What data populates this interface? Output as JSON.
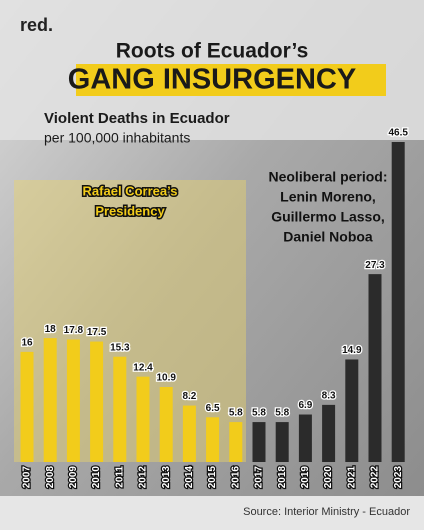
{
  "logo": "red.",
  "chart_data": {
    "type": "bar",
    "title": "Roots of Ecuador’s",
    "subtitle": "GANG INSURGENCY",
    "y_label": "Violent Deaths in Ecuador",
    "y_units": "per 100,000 inhabitants",
    "annotations": [
      [
        "Rafael Correa’s",
        "Presidency"
      ],
      [
        "Neoliberal period:",
        "Lenin Moreno,",
        "Guillermo Lasso,",
        "Daniel Noboa"
      ]
    ],
    "source": "Source: Interior Ministry - Ecuador",
    "categories": [
      "2007",
      "2008",
      "2009",
      "2010",
      "2011",
      "2012",
      "2013",
      "2014",
      "2015",
      "2016",
      "2017",
      "2018",
      "2019",
      "2020",
      "2021",
      "2022",
      "2023"
    ],
    "values": [
      16,
      18,
      17.8,
      17.5,
      15.3,
      12.4,
      10.9,
      8.2,
      6.5,
      5.8,
      5.8,
      5.8,
      6.9,
      8.3,
      14.9,
      27.3,
      46.5
    ],
    "colors": [
      "#f2cc1b",
      "#f2cc1b",
      "#f2cc1b",
      "#f2cc1b",
      "#f2cc1b",
      "#f2cc1b",
      "#f2cc1b",
      "#f2cc1b",
      "#f2cc1b",
      "#f2cc1b",
      "#2b2b2b",
      "#2b2b2b",
      "#2b2b2b",
      "#2b2b2b",
      "#2b2b2b",
      "#2b2b2b",
      "#2b2b2b"
    ]
  }
}
